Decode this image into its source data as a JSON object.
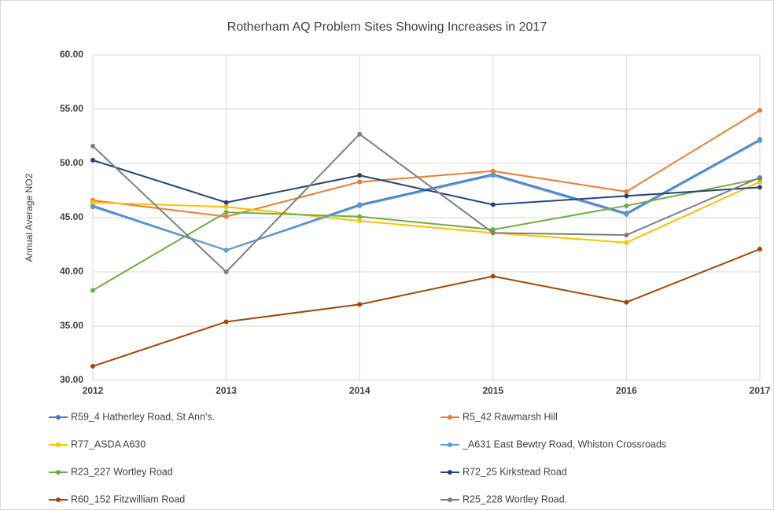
{
  "chart_data": {
    "type": "line",
    "title": "Rotherham AQ Problem Sites Showing Increases in 2017",
    "y_label": "Annual Average NO2",
    "categories": [
      "2012",
      "2013",
      "2014",
      "2015",
      "2016",
      "2017"
    ],
    "series": [
      {
        "name": "R59_4 Hatherley Road, St Ann's.",
        "color": "#4472c4",
        "values": [
          46.1,
          42.0,
          46.2,
          49.0,
          45.4,
          52.2
        ]
      },
      {
        "name": "R5_42 Rawmarsh Hill",
        "color": "#ed7d31",
        "values": [
          46.6,
          45.1,
          48.3,
          49.3,
          47.4,
          54.9
        ]
      },
      {
        "name": "R77_ASDA A630",
        "color": "#ffc000",
        "values": [
          46.4,
          46.0,
          44.7,
          43.6,
          42.7,
          48.3
        ]
      },
      {
        "name": "_A631 East Bewtry Road, Whiston Crossroads",
        "color": "#5b9bd5",
        "values": [
          46.0,
          42.0,
          46.1,
          48.9,
          45.3,
          52.1
        ]
      },
      {
        "name": "R23_227 Wortley Road",
        "color": "#70ad47",
        "values": [
          38.3,
          45.5,
          45.1,
          43.9,
          46.1,
          48.6
        ]
      },
      {
        "name": "R72_25 Kirkstead Road",
        "color": "#264478",
        "values": [
          50.3,
          46.4,
          48.9,
          46.2,
          47.0,
          47.8
        ]
      },
      {
        "name": "R60_152 Fitzwilliam Road",
        "color": "#9e480e",
        "values": [
          31.3,
          35.4,
          37.0,
          39.6,
          37.2,
          42.1
        ]
      },
      {
        "name": "R25_228 Wortley Road.",
        "color": "#7f7f7f",
        "values": [
          51.6,
          40.0,
          52.7,
          43.6,
          43.4,
          48.7
        ]
      }
    ],
    "ylim": [
      30,
      60
    ],
    "yticks": [
      {
        "value": 30,
        "label": "30.00"
      },
      {
        "value": 35,
        "label": "35.00"
      },
      {
        "value": 40,
        "label": "40.00"
      },
      {
        "value": 45,
        "label": "45.00"
      },
      {
        "value": 50,
        "label": "50.00"
      },
      {
        "value": 55,
        "label": "55.00"
      },
      {
        "value": 60,
        "label": "60.00"
      }
    ],
    "grid": true
  }
}
